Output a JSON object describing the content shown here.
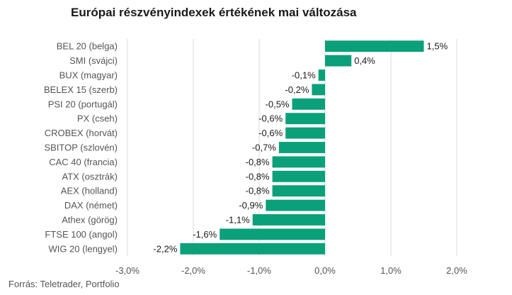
{
  "chart_data": {
    "type": "bar",
    "orientation": "horizontal",
    "title": "Európai részvényindexek értékének mai változása",
    "source": "Forrás: Teletrader, Portfolio",
    "categories": [
      "BEL 20 (belga)",
      "SMI (svájci)",
      "BUX (magyar)",
      "BELEX 15 (szerb)",
      "PSI 20 (portugál)",
      "PX (cseh)",
      "CROBEX (horvát)",
      "SBITOP (szlovén)",
      "CAC 40 (francia)",
      "ATX (osztrák)",
      "AEX (holland)",
      "DAX (német)",
      "Athex (görög)",
      "FTSE 100 (angol)",
      "WIG 20 (lengyel)"
    ],
    "values": [
      1.5,
      0.4,
      -0.1,
      -0.2,
      -0.5,
      -0.6,
      -0.6,
      -0.7,
      -0.8,
      -0.8,
      -0.8,
      -0.9,
      -1.1,
      -1.6,
      -2.2
    ],
    "value_labels": [
      "1,5%",
      "0,4%",
      "-0,1%",
      "-0,2%",
      "-0,5%",
      "-0,6%",
      "-0,6%",
      "-0,7%",
      "-0,8%",
      "-0,8%",
      "-0,8%",
      "-0,9%",
      "-1,1%",
      "-1,6%",
      "-2,2%"
    ],
    "xlim": [
      -3.0,
      2.0
    ],
    "xticks": [
      -3.0,
      -2.0,
      -1.0,
      0.0,
      1.0,
      2.0
    ],
    "xtick_labels": [
      "-3,0%",
      "-2,0%",
      "-1,0%",
      "0,0%",
      "1,0%",
      "2,0%"
    ],
    "grid": true,
    "bar_color": "#0aa07a",
    "grid_color": "#d9d9d9"
  }
}
